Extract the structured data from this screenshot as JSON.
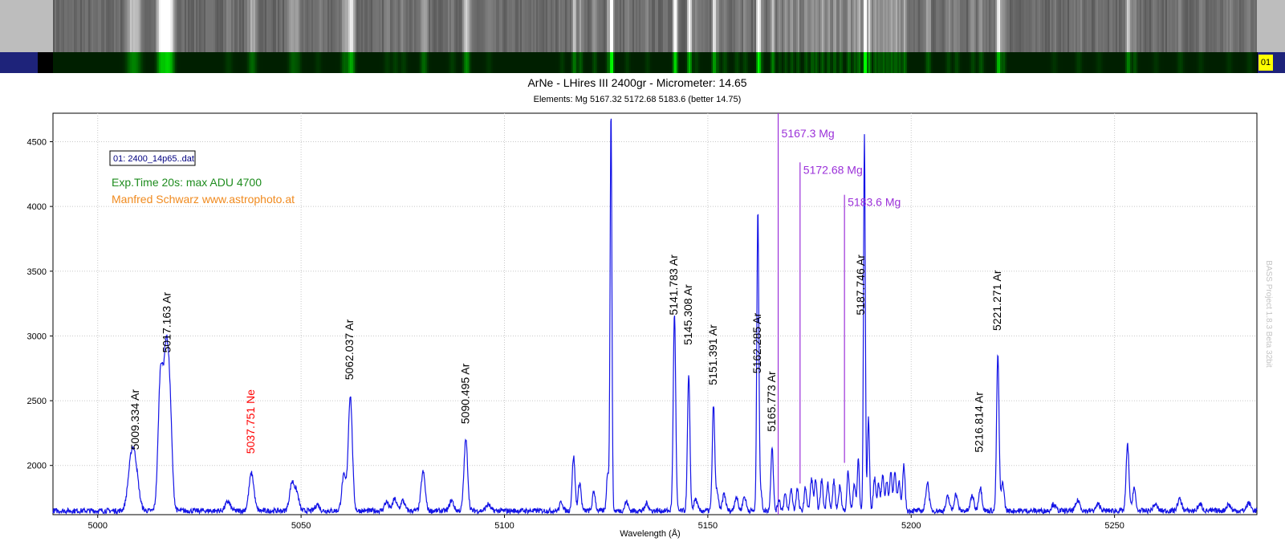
{
  "header": {
    "badge_left": "01",
    "badge_right": "01"
  },
  "chart_data": {
    "type": "line",
    "title": "ArNe - LHires III 2400gr - Micrometer: 14.65",
    "subtitle": "Elements: Mg 5167.32 5172.68 5183.6 (better 14.75)",
    "xlabel": "Wavelength (Å)",
    "ylabel": "",
    "xlim": [
      4989,
      5285
    ],
    "ylim": [
      1620,
      4720
    ],
    "x_ticks": [
      5000,
      5050,
      5100,
      5150,
      5200,
      5250
    ],
    "y_ticks": [
      2000,
      2500,
      3000,
      3500,
      4000,
      4500
    ],
    "grid": true,
    "legend_box": "01: 2400_14p65..dat",
    "notes": [
      {
        "text": "Exp.Time 20s: max ADU 4700",
        "color": "#1e8c1e"
      },
      {
        "text": "Manfred Schwarz www.astrophoto.at",
        "color": "#f08a1e"
      }
    ],
    "side_label": "BASS Project 1.8.3 Beta 32bit",
    "series": [
      {
        "color": "#1414e6",
        "baseline": 1650,
        "peaks": [
          [
            5008.2,
            1990,
            0.8
          ],
          [
            5009.3,
            1930,
            0.8
          ],
          [
            5015.5,
            2740,
            0.6
          ],
          [
            5016.7,
            2520,
            0.5
          ],
          [
            5017.6,
            2590,
            0.6
          ],
          [
            5032,
            1720,
            0.6
          ],
          [
            5037.8,
            1940,
            0.6
          ],
          [
            5047.8,
            1870,
            0.6
          ],
          [
            5049,
            1770,
            0.5
          ],
          [
            5054,
            1700,
            0.5
          ],
          [
            5060.5,
            1920,
            0.5
          ],
          [
            5062.1,
            2540,
            0.5
          ],
          [
            5071,
            1720,
            0.5
          ],
          [
            5073,
            1740,
            0.5
          ],
          [
            5075,
            1730,
            0.5
          ],
          [
            5080,
            1950,
            0.5
          ],
          [
            5087,
            1730,
            0.5
          ],
          [
            5090.5,
            2200,
            0.45
          ],
          [
            5096,
            1700,
            0.5
          ],
          [
            5114,
            1720,
            0.4
          ],
          [
            5117,
            2070,
            0.35
          ],
          [
            5118.5,
            1870,
            0.35
          ],
          [
            5122,
            1800,
            0.35
          ],
          [
            5125.4,
            1950,
            0.3
          ],
          [
            5126.2,
            4720,
            0.22
          ],
          [
            5130,
            1720,
            0.4
          ],
          [
            5135,
            1710,
            0.4
          ],
          [
            5141.8,
            3180,
            0.3
          ],
          [
            5145.3,
            2690,
            0.3
          ],
          [
            5147,
            1740,
            0.4
          ],
          [
            5151.4,
            2470,
            0.3
          ],
          [
            5152.3,
            1800,
            0.3
          ],
          [
            5154,
            1780,
            0.4
          ],
          [
            5157,
            1760,
            0.4
          ],
          [
            5159,
            1760,
            0.4
          ],
          [
            5162.3,
            3960,
            0.25
          ],
          [
            5163,
            1800,
            0.3
          ],
          [
            5165.8,
            2150,
            0.3
          ],
          [
            5167.5,
            1740,
            0.3
          ],
          [
            5169,
            1780,
            0.3
          ],
          [
            5170.5,
            1820,
            0.3
          ],
          [
            5172,
            1820,
            0.3
          ],
          [
            5174,
            1830,
            0.3
          ],
          [
            5175.5,
            1900,
            0.3
          ],
          [
            5176.5,
            1880,
            0.3
          ],
          [
            5178,
            1890,
            0.3
          ],
          [
            5179.5,
            1870,
            0.3
          ],
          [
            5181,
            1880,
            0.3
          ],
          [
            5182.5,
            1850,
            0.3
          ],
          [
            5184.5,
            1950,
            0.3
          ],
          [
            5186,
            1860,
            0.3
          ],
          [
            5187,
            2050,
            0.25
          ],
          [
            5188.5,
            4540,
            0.22
          ],
          [
            5189.5,
            2370,
            0.25
          ],
          [
            5191,
            1900,
            0.3
          ],
          [
            5192,
            1860,
            0.3
          ],
          [
            5193,
            1920,
            0.3
          ],
          [
            5194,
            1880,
            0.3
          ],
          [
            5195,
            1940,
            0.3
          ],
          [
            5196,
            1950,
            0.3
          ],
          [
            5197,
            1880,
            0.3
          ],
          [
            5198.2,
            2000,
            0.3
          ],
          [
            5204,
            1870,
            0.4
          ],
          [
            5209,
            1760,
            0.4
          ],
          [
            5211,
            1780,
            0.4
          ],
          [
            5215,
            1770,
            0.4
          ],
          [
            5217,
            1830,
            0.4
          ],
          [
            5221.3,
            2860,
            0.3
          ],
          [
            5222.5,
            1870,
            0.35
          ],
          [
            5235,
            1700,
            0.5
          ],
          [
            5241,
            1730,
            0.5
          ],
          [
            5246,
            1700,
            0.5
          ],
          [
            5253.2,
            2160,
            0.35
          ],
          [
            5254.8,
            1830,
            0.35
          ],
          [
            5260,
            1700,
            0.5
          ],
          [
            5266,
            1740,
            0.5
          ],
          [
            5271,
            1700,
            0.5
          ],
          [
            5278,
            1700,
            0.5
          ],
          [
            5283,
            1710,
            0.5
          ]
        ]
      }
    ],
    "line_ids": [
      {
        "x": 5009.334,
        "label": "5009.334 Ar",
        "color": "#000000",
        "y": 2120
      },
      {
        "x": 5017.163,
        "label": "5017.163 Ar",
        "color": "#000000",
        "y": 2870
      },
      {
        "x": 5037.751,
        "label": "5037.751 Ne",
        "color": "#ff0000",
        "y": 2090
      },
      {
        "x": 5062.037,
        "label": "5062.037 Ar",
        "color": "#000000",
        "y": 2660
      },
      {
        "x": 5090.495,
        "label": "5090.495 Ar",
        "color": "#000000",
        "y": 2320
      },
      {
        "x": 5141.783,
        "label": "5141.783 Ar",
        "color": "#000000",
        "y": 3160
      },
      {
        "x": 5145.308,
        "label": "5145.308 Ar",
        "color": "#000000",
        "y": 2930
      },
      {
        "x": 5151.391,
        "label": "5151.391 Ar",
        "color": "#000000",
        "y": 2620
      },
      {
        "x": 5162.285,
        "label": "5162.285 Ar",
        "color": "#000000",
        "y": 2710
      },
      {
        "x": 5165.773,
        "label": "5165.773 Ar",
        "color": "#000000",
        "y": 2260
      },
      {
        "x": 5187.746,
        "label": "5187.746 Ar",
        "color": "#000000",
        "y": 3160
      },
      {
        "x": 5216.814,
        "label": "5216.814 Ar",
        "color": "#000000",
        "y": 2100
      },
      {
        "x": 5221.271,
        "label": "5221.271 Ar",
        "color": "#000000",
        "y": 3040
      }
    ],
    "element_lines": [
      {
        "x": 5167.3,
        "label": "5167.3 Mg",
        "color": "#9b30d9",
        "top": 4720,
        "bottom": 1620
      },
      {
        "x": 5172.68,
        "label": "5172.68 Mg",
        "color": "#9b30d9",
        "top": 4340,
        "bottom": 1860
      },
      {
        "x": 5183.6,
        "label": "5183.6 Mg",
        "color": "#9b30d9",
        "top": 4090,
        "bottom": 2020
      }
    ]
  }
}
